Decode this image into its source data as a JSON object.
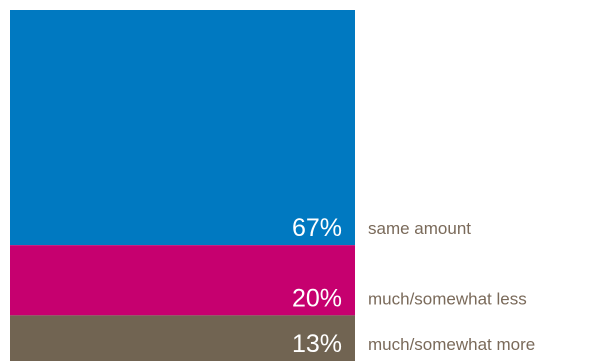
{
  "chart_data": {
    "type": "bar",
    "stacked": true,
    "orientation": "vertical",
    "categories": [
      "same amount",
      "much/somewhat less",
      "much/somewhat more"
    ],
    "values": [
      67,
      20,
      13
    ],
    "value_labels": [
      "67%",
      "20%",
      "13%"
    ],
    "colors": [
      "#0079c1",
      "#c6006f",
      "#716452"
    ],
    "label_color": "#7a6a5a",
    "title": "",
    "xlabel": "",
    "ylabel": "",
    "ylim": [
      0,
      100
    ],
    "grid": false,
    "legend": "right"
  }
}
